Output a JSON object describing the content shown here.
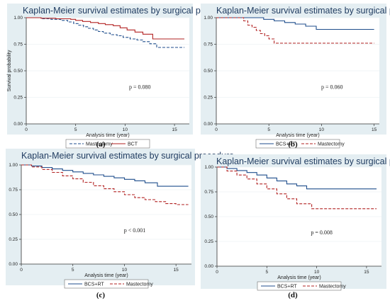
{
  "chart_data": [
    {
      "type": "line",
      "panel_label": "(a)",
      "title": "Kaplan-Meier survival estimates by surgical procedure",
      "xlabel": "Analysis time (year)",
      "ylabel": "Survival probability",
      "xticks": [
        "0",
        "5",
        "10",
        "15"
      ],
      "yticks": [
        "0.00",
        "0.25",
        "0.50",
        "0.75",
        "1.00"
      ],
      "xlim": [
        0,
        16.5
      ],
      "ylim": [
        0,
        1
      ],
      "grid": true,
      "legend_position": "bottom",
      "annotation": "p = 0.080",
      "annotation_xy": [
        11.5,
        0.33
      ],
      "series": [
        {
          "name": "Mastectomy",
          "color": "#1f4e8c",
          "dash": "dashed",
          "x": [
            0,
            1.5,
            2.5,
            3.5,
            4.2,
            4.8,
            5.3,
            5.8,
            6.3,
            6.8,
            7.3,
            7.8,
            8.5,
            9.2,
            9.8,
            10.5,
            11.2,
            11.8,
            12.5,
            13.2,
            16
          ],
          "y": [
            1.0,
            0.99,
            0.985,
            0.975,
            0.96,
            0.945,
            0.93,
            0.915,
            0.9,
            0.885,
            0.87,
            0.855,
            0.84,
            0.83,
            0.815,
            0.8,
            0.79,
            0.775,
            0.755,
            0.72,
            0.72
          ]
        },
        {
          "name": "BCT",
          "color": "#b22222",
          "dash": "solid",
          "x": [
            0,
            1.5,
            3.0,
            4.5,
            5.0,
            5.7,
            6.5,
            7.3,
            8.0,
            8.8,
            9.5,
            10.2,
            11.0,
            11.8,
            12.8,
            16
          ],
          "y": [
            1.0,
            0.995,
            0.99,
            0.985,
            0.975,
            0.965,
            0.955,
            0.945,
            0.935,
            0.925,
            0.905,
            0.885,
            0.865,
            0.845,
            0.8,
            0.8
          ]
        }
      ]
    },
    {
      "type": "line",
      "panel_label": "(b)",
      "title": "Kaplan-Meier survival estimates by surgical procedure",
      "xlabel": "Analysis time (year)",
      "ylabel": "",
      "xticks": [
        "0",
        "5",
        "10",
        "15"
      ],
      "yticks": [
        "0.00",
        "0.25",
        "0.50",
        "0.75",
        "1.00"
      ],
      "xlim": [
        0,
        15.5
      ],
      "ylim": [
        0,
        1
      ],
      "grid": true,
      "legend_position": "bottom",
      "annotation": "p = 0.060",
      "annotation_xy": [
        11.0,
        0.33
      ],
      "series": [
        {
          "name": "BCS+RT",
          "color": "#1f4e8c",
          "dash": "solid",
          "x": [
            0,
            3.0,
            4.5,
            5.5,
            6.5,
            7.5,
            8.5,
            9.5,
            15
          ],
          "y": [
            1.0,
            1.0,
            0.985,
            0.97,
            0.955,
            0.94,
            0.92,
            0.89,
            0.89
          ]
        },
        {
          "name": "Mastectomy",
          "color": "#b22222",
          "dash": "dashed",
          "x": [
            0,
            2.0,
            2.6,
            3.0,
            3.4,
            3.8,
            4.2,
            4.6,
            5.0,
            5.5,
            15
          ],
          "y": [
            1.0,
            1.0,
            0.97,
            0.93,
            0.91,
            0.88,
            0.85,
            0.83,
            0.8,
            0.76,
            0.76
          ]
        }
      ]
    },
    {
      "type": "line",
      "panel_label": "(c)",
      "title": "Kaplan-Meier survival estimates by surgical procedure",
      "xlabel": "Analysis time (year)",
      "ylabel": "",
      "xticks": [
        "0",
        "5",
        "10",
        "15"
      ],
      "yticks": [
        "0.00",
        "0.25",
        "0.50",
        "0.75",
        "1.00"
      ],
      "xlim": [
        0,
        16.5
      ],
      "ylim": [
        0,
        1
      ],
      "grid": true,
      "legend_position": "bottom",
      "annotation": "p < 0.001",
      "annotation_xy": [
        11.0,
        0.32
      ],
      "series": [
        {
          "name": "BCS+RT",
          "color": "#1f4e8c",
          "dash": "solid",
          "x": [
            0,
            1.0,
            2.0,
            3.0,
            4.0,
            5.0,
            6.0,
            7.0,
            8.0,
            9.0,
            10.0,
            11.0,
            12.0,
            13.2,
            16.2
          ],
          "y": [
            1.0,
            0.99,
            0.975,
            0.96,
            0.945,
            0.93,
            0.915,
            0.9,
            0.885,
            0.87,
            0.855,
            0.84,
            0.82,
            0.785,
            0.785
          ]
        },
        {
          "name": "Mastectomy",
          "color": "#b22222",
          "dash": "dashed",
          "x": [
            0,
            1.0,
            2.0,
            3.0,
            4.0,
            5.0,
            6.0,
            7.0,
            8.0,
            9.0,
            10.0,
            11.0,
            12.0,
            13.0,
            14.0,
            15.0,
            16.2
          ],
          "y": [
            1.0,
            0.98,
            0.955,
            0.925,
            0.89,
            0.86,
            0.825,
            0.79,
            0.76,
            0.73,
            0.7,
            0.67,
            0.65,
            0.63,
            0.61,
            0.6,
            0.6
          ]
        }
      ]
    },
    {
      "type": "line",
      "panel_label": "(d)",
      "title": "Kaplan-Meier survival estimates by surgical procedure",
      "xlabel": "Analysis time (year)",
      "ylabel": "",
      "xticks": [
        "0",
        "5",
        "10",
        "15"
      ],
      "yticks": [
        "0.00",
        "0.25",
        "0.50",
        "0.75",
        "1.00"
      ],
      "xlim": [
        0,
        16.5
      ],
      "ylim": [
        0,
        1
      ],
      "grid": true,
      "legend_position": "bottom",
      "annotation": "p = 0.008",
      "annotation_xy": [
        10.5,
        0.32
      ],
      "series": [
        {
          "name": "BCS+RT",
          "color": "#1f4e8c",
          "dash": "solid",
          "x": [
            0,
            1.0,
            2.0,
            3.0,
            4.0,
            5.0,
            6.0,
            7.0,
            8.0,
            9.0,
            16
          ],
          "y": [
            1.0,
            0.985,
            0.965,
            0.945,
            0.92,
            0.89,
            0.86,
            0.83,
            0.81,
            0.78,
            0.78
          ]
        },
        {
          "name": "Mastectomy",
          "color": "#b22222",
          "dash": "dashed",
          "x": [
            0,
            1.0,
            2.0,
            3.0,
            4.0,
            5.0,
            6.0,
            7.0,
            8.0,
            9.5,
            16
          ],
          "y": [
            1.0,
            0.96,
            0.92,
            0.88,
            0.83,
            0.78,
            0.73,
            0.68,
            0.63,
            0.58,
            0.58
          ]
        }
      ]
    }
  ]
}
